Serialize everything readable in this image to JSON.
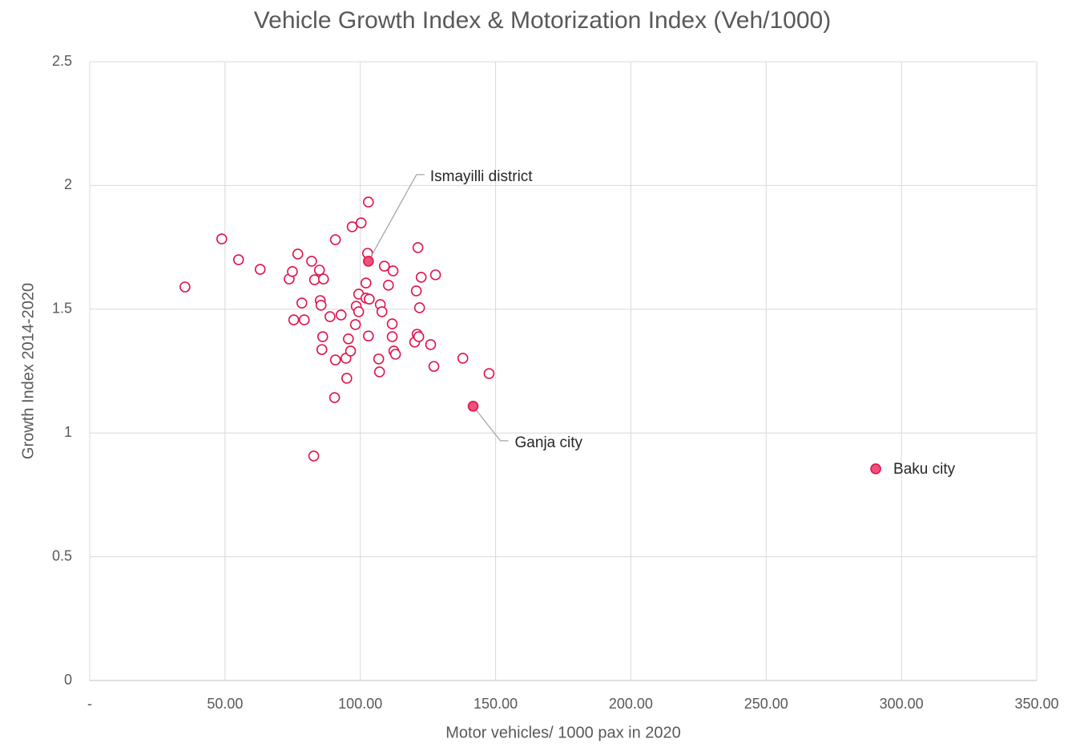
{
  "chart_data": {
    "type": "scatter",
    "title": "Vehicle Growth Index & Motorization Index (Veh/1000)",
    "x_label": "Motor vehicles/ 1000 pax in 2020",
    "y_label": "Growth Index 2014-2020",
    "color": "#e0144c",
    "highlight_color": "#f0507a",
    "grid": true,
    "xlim": [
      0,
      350
    ],
    "ylim": [
      0,
      2.5
    ],
    "xticks": [
      {
        "value": 0,
        "label": "-"
      },
      {
        "value": 50,
        "label": "50.00"
      },
      {
        "value": 100,
        "label": "100.00"
      },
      {
        "value": 150,
        "label": "150.00"
      },
      {
        "value": 200,
        "label": "200.00"
      },
      {
        "value": 250,
        "label": "250.00"
      },
      {
        "value": 300,
        "label": "300.00"
      },
      {
        "value": 350,
        "label": "350.00"
      }
    ],
    "yticks": [
      0,
      0.5,
      1,
      1.5,
      2,
      2.5
    ],
    "series": [
      {
        "x": [
          35.2,
          48.8,
          55.0,
          63.0,
          73.7,
          74.9,
          75.4,
          76.9,
          78.4,
          79.3,
          82.0,
          82.8,
          83.1,
          84.9,
          85.2,
          85.5,
          86.1,
          85.8,
          86.4,
          88.8,
          90.5,
          90.8,
          90.8,
          92.9,
          94.7,
          95.0,
          95.6,
          96.4,
          97.0,
          98.2,
          98.5,
          99.4,
          99.4,
          100.3,
          102.1,
          102.1,
          103.0,
          102.7,
          103.0,
          103.3,
          106.8,
          107.1,
          107.4,
          108.0,
          108.9,
          110.4,
          111.8,
          111.8,
          112.1,
          112.4,
          113.0,
          120.1,
          120.7,
          121.0,
          121.3,
          121.6,
          121.9,
          122.5,
          126.0,
          127.2,
          127.8,
          137.9,
          147.6
        ],
        "y": [
          1.59,
          1.784,
          1.7,
          1.661,
          1.622,
          1.652,
          1.457,
          1.723,
          1.525,
          1.457,
          1.694,
          0.907,
          1.619,
          1.658,
          1.535,
          1.516,
          1.389,
          1.337,
          1.622,
          1.47,
          1.143,
          1.781,
          1.295,
          1.477,
          1.302,
          1.221,
          1.38,
          1.331,
          1.833,
          1.438,
          1.512,
          1.561,
          1.49,
          1.849,
          1.606,
          1.545,
          1.933,
          1.726,
          1.392,
          1.541,
          1.299,
          1.247,
          1.519,
          1.49,
          1.674,
          1.597,
          1.441,
          1.389,
          1.655,
          1.331,
          1.318,
          1.367,
          1.574,
          1.399,
          1.749,
          1.389,
          1.506,
          1.629,
          1.357,
          1.269,
          1.639,
          1.302,
          1.24
        ]
      }
    ],
    "annotations": [
      {
        "text": "Ismayilli district",
        "x": 103.0,
        "y": 1.694
      },
      {
        "text": "Ganja city",
        "x": 141.7,
        "y": 1.108
      },
      {
        "text": "Baku city",
        "x": 290.5,
        "y": 0.855
      }
    ]
  }
}
